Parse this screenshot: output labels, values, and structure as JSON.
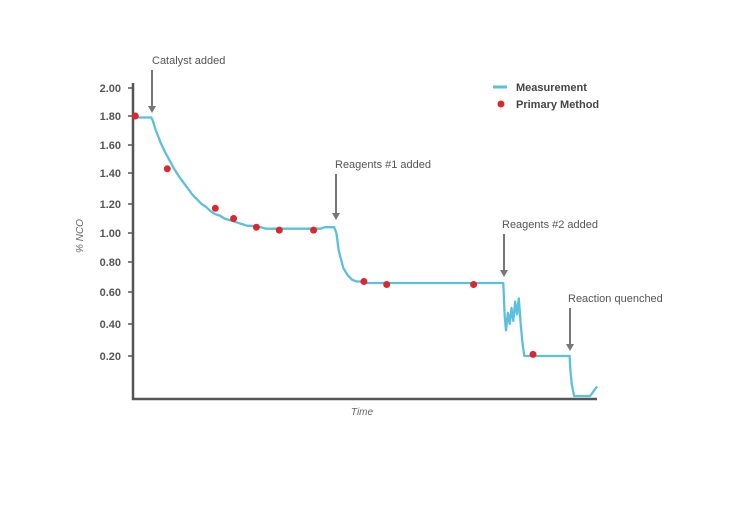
{
  "chart_data": {
    "type": "line",
    "xlabel": "Time",
    "ylabel": "% NCO",
    "ylim": [
      0,
      2.0
    ],
    "yticks": [
      0.2,
      0.4,
      0.6,
      0.8,
      1.0,
      1.2,
      1.4,
      1.6,
      1.8,
      2.0
    ],
    "ytick_labels": [
      "0.20",
      "0.40",
      "0.60",
      "0.80",
      "1.00",
      "1.20",
      "1.40",
      "1.60",
      "1.80",
      "2.00"
    ],
    "grid": false,
    "legend_position": "top-right",
    "series": [
      {
        "name": "Measurement",
        "style": "line",
        "color": "#5bc0de",
        "x": [
          0,
          2,
          4,
          4.3,
          5,
          6,
          7,
          8,
          9,
          10,
          11,
          12,
          13,
          14,
          15,
          16,
          17,
          18,
          19,
          20,
          21,
          22,
          23,
          24,
          25,
          26,
          27,
          28,
          29,
          30,
          31,
          32,
          33,
          34,
          35,
          36,
          37,
          38,
          39,
          40,
          41,
          42,
          43,
          44,
          44.5,
          45,
          46,
          47,
          48,
          49,
          50,
          51,
          52,
          53,
          55,
          60,
          65,
          70,
          75,
          80,
          81,
          81.3,
          81.6,
          82.0,
          82.4,
          82.8,
          83.2,
          83.6,
          84.0,
          84.4,
          84.8,
          85.2,
          85.6,
          86,
          88,
          90,
          92,
          94,
          95.5,
          95.7,
          96.0,
          96.5,
          98,
          100,
          101.5
        ],
        "y": [
          1.79,
          1.79,
          1.79,
          1.77,
          1.7,
          1.62,
          1.55,
          1.49,
          1.43,
          1.38,
          1.34,
          1.3,
          1.26,
          1.23,
          1.2,
          1.18,
          1.15,
          1.13,
          1.12,
          1.1,
          1.09,
          1.08,
          1.07,
          1.06,
          1.05,
          1.05,
          1.04,
          1.04,
          1.03,
          1.03,
          1.03,
          1.03,
          1.03,
          1.03,
          1.03,
          1.03,
          1.03,
          1.03,
          1.03,
          1.03,
          1.03,
          1.04,
          1.04,
          1.04,
          1.0,
          0.88,
          0.76,
          0.71,
          0.68,
          0.67,
          0.67,
          0.66,
          0.66,
          0.66,
          0.66,
          0.66,
          0.66,
          0.66,
          0.66,
          0.66,
          0.66,
          0.45,
          0.36,
          0.47,
          0.4,
          0.5,
          0.42,
          0.54,
          0.46,
          0.56,
          0.4,
          0.28,
          0.2,
          0.2,
          0.2,
          0.2,
          0.2,
          0.2,
          0.2,
          0.1,
          0.02,
          0.0,
          0.0,
          0.0,
          0.01
        ]
      },
      {
        "name": "Primary Method",
        "style": "scatter",
        "color": "#d9282f",
        "x": [
          0.5,
          7.5,
          18,
          22,
          27,
          32,
          39.5,
          50.5,
          55.5,
          74.5,
          87.5
        ],
        "y": [
          1.8,
          1.43,
          1.17,
          1.1,
          1.04,
          1.02,
          1.02,
          0.67,
          0.65,
          0.65,
          0.21
        ]
      }
    ],
    "annotations": [
      {
        "text": "Catalyst added",
        "x": 4.5,
        "y": 1.79
      },
      {
        "text": "Reagents #1 added",
        "x": 44.5,
        "y": 1.04
      },
      {
        "text": "Reagents #2 added",
        "x": 81.5,
        "y": 0.66
      },
      {
        "text": "Reaction quenched",
        "x": 95.7,
        "y": 0.2
      }
    ]
  }
}
